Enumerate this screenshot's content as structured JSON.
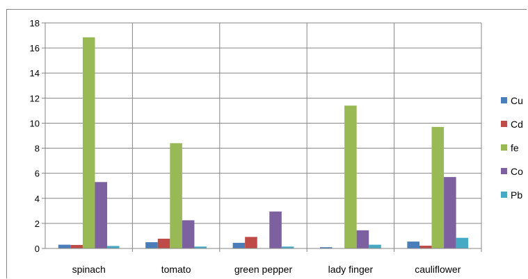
{
  "chart_data": {
    "type": "bar",
    "title": "",
    "xlabel": "",
    "ylabel": "",
    "categories": [
      "spinach",
      "tomato",
      "green pepper",
      "lady finger",
      "cauliflower"
    ],
    "series": [
      {
        "name": "Cu",
        "color": "#4a7ebb",
        "values": [
          0.3,
          0.5,
          0.45,
          0.1,
          0.55
        ]
      },
      {
        "name": "Cd",
        "color": "#be4b48",
        "values": [
          0.28,
          0.78,
          0.92,
          0,
          0.22
        ]
      },
      {
        "name": "fe",
        "color": "#98b954",
        "values": [
          16.85,
          8.4,
          0,
          11.4,
          9.7
        ]
      },
      {
        "name": "Co",
        "color": "#7d60a0",
        "values": [
          5.3,
          2.25,
          2.95,
          1.45,
          5.7
        ]
      },
      {
        "name": "Pb",
        "color": "#46aac5",
        "values": [
          0.2,
          0.15,
          0.15,
          0.3,
          0.85
        ]
      }
    ],
    "ylim": [
      0,
      18
    ],
    "yticks": [
      "0",
      "2",
      "4",
      "6",
      "8",
      "10",
      "12",
      "14",
      "16",
      "18"
    ],
    "grid": true,
    "legend_position": "right"
  }
}
